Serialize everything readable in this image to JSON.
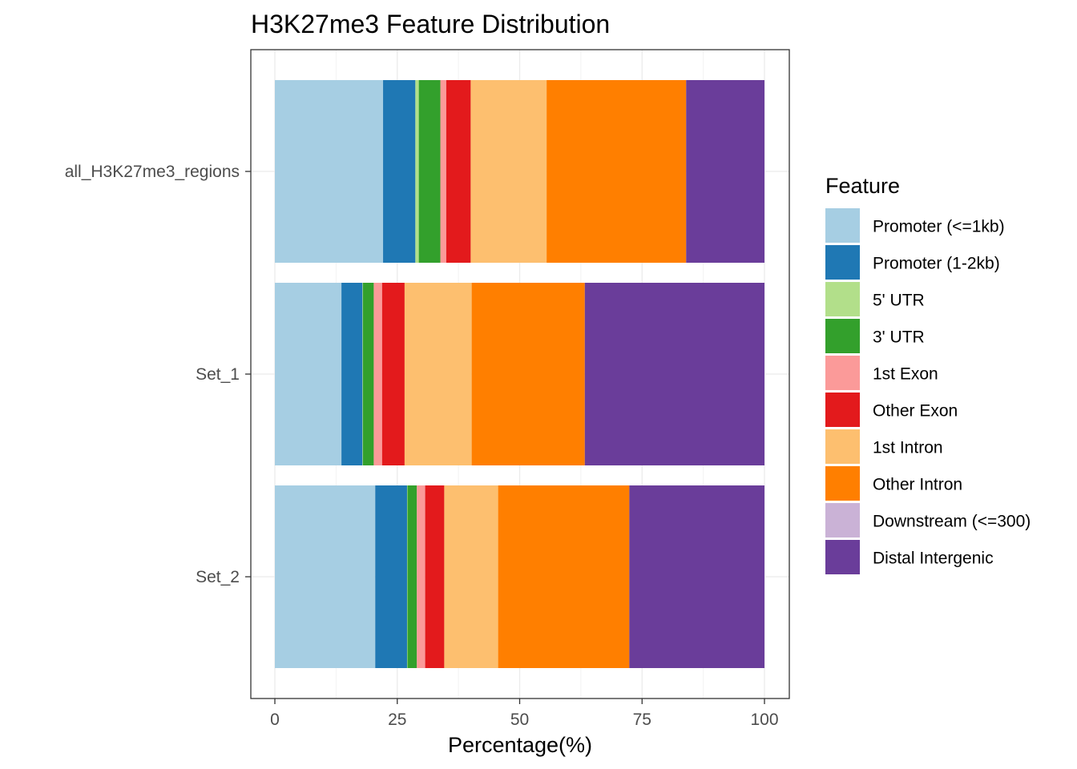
{
  "chart_data": {
    "type": "bar",
    "orientation": "horizontal",
    "stacked": true,
    "title": "H3K27me3 Feature Distribution",
    "xlabel": "Percentage(%)",
    "ylabel": "",
    "xlim": [
      0,
      100
    ],
    "x_ticks": [
      "0",
      "25",
      "50",
      "75",
      "100"
    ],
    "x_tick_values": [
      0,
      25,
      50,
      75,
      100
    ],
    "grid": true,
    "legend_position": "right",
    "legend_title": "Feature",
    "categories": [
      "all_H3K27me3_regions",
      "Set_1",
      "Set_2"
    ],
    "series": [
      {
        "name": "Promoter (<=1kb)",
        "color": "#A6CEE3",
        "values": [
          22.1,
          13.6,
          20.5
        ]
      },
      {
        "name": "Promoter (1-2kb)",
        "color": "#1F78B4",
        "values": [
          6.6,
          4.3,
          6.5
        ]
      },
      {
        "name": "5' UTR",
        "color": "#B2DF8A",
        "values": [
          0.7,
          0.1,
          0.1
        ]
      },
      {
        "name": "3' UTR",
        "color": "#33A02C",
        "values": [
          4.4,
          2.2,
          1.9
        ]
      },
      {
        "name": "1st Exon",
        "color": "#FB9A99",
        "values": [
          1.2,
          1.7,
          1.7
        ]
      },
      {
        "name": "Other Exon",
        "color": "#E31A1C",
        "values": [
          5.0,
          4.6,
          3.9
        ]
      },
      {
        "name": "1st Intron",
        "color": "#FDBF6F",
        "values": [
          15.5,
          13.7,
          11.0
        ]
      },
      {
        "name": "Other Intron",
        "color": "#FF7F00",
        "values": [
          28.5,
          23.1,
          26.8
        ]
      },
      {
        "name": "Downstream (<=300)",
        "color": "#CAB2D6",
        "values": [
          0.0,
          0.0,
          0.0
        ]
      },
      {
        "name": "Distal Intergenic",
        "color": "#6A3D9A",
        "values": [
          16.0,
          36.7,
          27.6
        ]
      }
    ]
  }
}
